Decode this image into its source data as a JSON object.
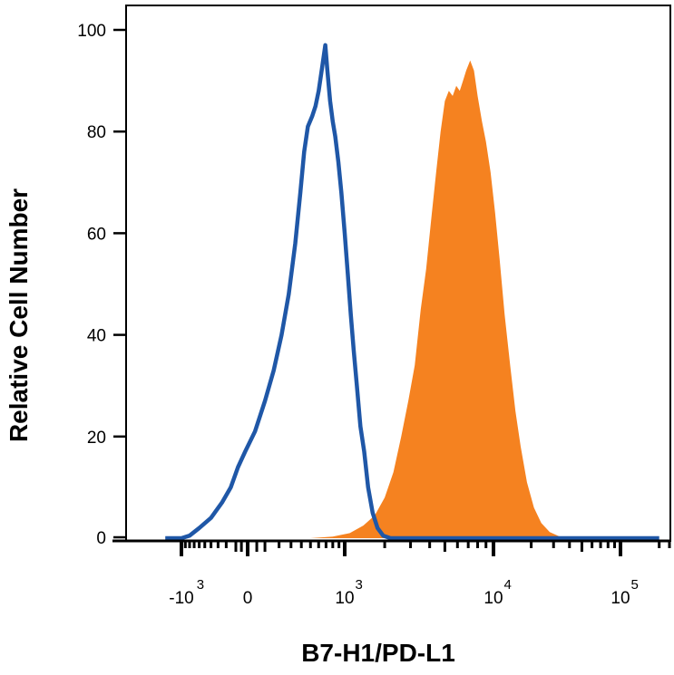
{
  "chart_data": {
    "type": "area",
    "title": "",
    "xlabel": "B7-H1/PD-L1",
    "ylabel": "Relative Cell Number",
    "ylim": [
      0,
      100
    ],
    "y_ticks": [
      0,
      20,
      40,
      60,
      80,
      100
    ],
    "x_scale": "biexponential",
    "x_tick_labels": [
      {
        "base": "-10",
        "exp": "3"
      },
      {
        "base": "0",
        "exp": ""
      },
      {
        "base": "10",
        "exp": "3"
      },
      {
        "base": "10",
        "exp": "4"
      },
      {
        "base": "10",
        "exp": "5"
      }
    ],
    "grid": false,
    "legend": "none",
    "series": [
      {
        "style": "outline",
        "color": "#1f57a7",
        "points": [
          [
            -1500,
            0
          ],
          [
            -1000,
            0
          ],
          [
            -800,
            0.5
          ],
          [
            -600,
            2
          ],
          [
            -400,
            4
          ],
          [
            -250,
            7
          ],
          [
            -150,
            10
          ],
          [
            -80,
            14
          ],
          [
            -20,
            17
          ],
          [
            40,
            21
          ],
          [
            100,
            27
          ],
          [
            160,
            33
          ],
          [
            220,
            40
          ],
          [
            280,
            48
          ],
          [
            340,
            58
          ],
          [
            390,
            68
          ],
          [
            430,
            76
          ],
          [
            470,
            81
          ],
          [
            520,
            83
          ],
          [
            560,
            85
          ],
          [
            600,
            88
          ],
          [
            650,
            93
          ],
          [
            690,
            97
          ],
          [
            720,
            92
          ],
          [
            760,
            86
          ],
          [
            800,
            82
          ],
          [
            840,
            79
          ],
          [
            890,
            74
          ],
          [
            940,
            68
          ],
          [
            1000,
            60
          ],
          [
            1060,
            52
          ],
          [
            1120,
            44
          ],
          [
            1180,
            37
          ],
          [
            1250,
            30
          ],
          [
            1330,
            22
          ],
          [
            1420,
            17
          ],
          [
            1520,
            10
          ],
          [
            1640,
            5
          ],
          [
            1780,
            2
          ],
          [
            1950,
            0.5
          ],
          [
            2200,
            0
          ],
          [
            200000,
            0
          ]
        ]
      },
      {
        "style": "filled",
        "color": "#f58220",
        "points": [
          [
            -1500,
            0
          ],
          [
            -400,
            0
          ],
          [
            0,
            0
          ],
          [
            500,
            0
          ],
          [
            800,
            0.3
          ],
          [
            1100,
            1
          ],
          [
            1400,
            2.5
          ],
          [
            1700,
            4.5
          ],
          [
            2000,
            8
          ],
          [
            2300,
            13
          ],
          [
            2600,
            20
          ],
          [
            2900,
            27
          ],
          [
            3200,
            34
          ],
          [
            3500,
            45
          ],
          [
            3800,
            53
          ],
          [
            4100,
            63
          ],
          [
            4400,
            72
          ],
          [
            4700,
            80
          ],
          [
            5000,
            86
          ],
          [
            5300,
            88
          ],
          [
            5600,
            87
          ],
          [
            5900,
            89
          ],
          [
            6200,
            88
          ],
          [
            6500,
            90
          ],
          [
            6800,
            92
          ],
          [
            7200,
            94
          ],
          [
            7600,
            92
          ],
          [
            8000,
            87
          ],
          [
            8500,
            82
          ],
          [
            9000,
            78
          ],
          [
            9600,
            72
          ],
          [
            10300,
            64
          ],
          [
            11200,
            55
          ],
          [
            12300,
            44
          ],
          [
            13600,
            34
          ],
          [
            15000,
            25
          ],
          [
            16500,
            18
          ],
          [
            18500,
            11
          ],
          [
            21000,
            6
          ],
          [
            24000,
            3
          ],
          [
            28000,
            1.2
          ],
          [
            33000,
            0.4
          ],
          [
            40000,
            0
          ],
          [
            200000,
            0
          ]
        ]
      }
    ]
  }
}
